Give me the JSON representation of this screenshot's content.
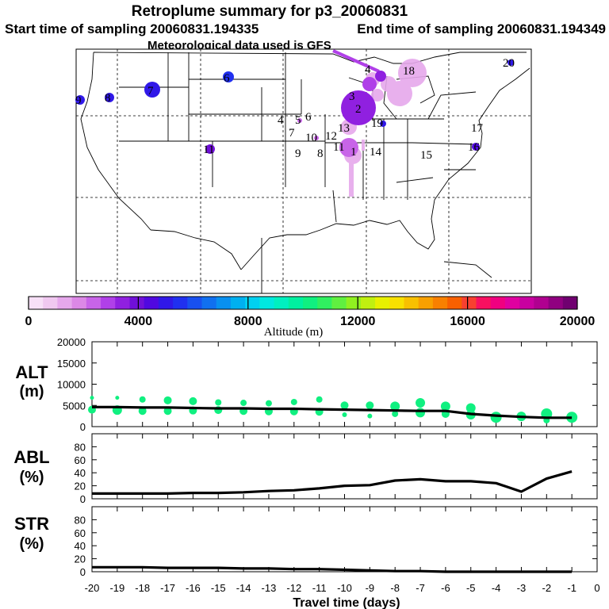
{
  "header": {
    "title": "Retroplume summary for p3_20060831",
    "start_label": "Start time of sampling 20060831.194335",
    "end_label": "End time of sampling 20060831.194349",
    "met_label": "Meteorological data used is GFS"
  },
  "colorbar": {
    "ticks": [
      "0",
      "4000",
      "8000",
      "12000",
      "16000",
      "20000"
    ],
    "tick_values": [
      0,
      4000,
      8000,
      12000,
      16000,
      20000
    ],
    "label": "Altitude (m)",
    "colors": [
      "#f7e0f7",
      "#f0c8f0",
      "#e6a8ec",
      "#dc88e6",
      "#c864e8",
      "#b040e8",
      "#9020e0",
      "#7010d8",
      "#5008e0",
      "#3018e8",
      "#2030f0",
      "#1850f0",
      "#1070f0",
      "#0890f0",
      "#00b0f0",
      "#00d0f0",
      "#00e8e0",
      "#00f0c0",
      "#00f0a0",
      "#10f080",
      "#30f060",
      "#60f040",
      "#90f020",
      "#c0f010",
      "#e8f000",
      "#f8e000",
      "#f8c000",
      "#f8a000",
      "#f88000",
      "#f86000",
      "#f84030",
      "#f81060",
      "#f00080",
      "#e000a0",
      "#c800a0",
      "#b00090",
      "#900080",
      "#700070"
    ]
  },
  "map": {
    "sites": [
      {
        "label": "1",
        "color": "#9020e0"
      },
      {
        "label": "2",
        "color": "#9020e0"
      },
      {
        "label": "3",
        "color": "#9020e0"
      },
      {
        "label": "4",
        "color": "#9020e0"
      },
      {
        "label": "4",
        "color": "#000000"
      },
      {
        "label": "5",
        "color": "#9020e0"
      },
      {
        "label": "6",
        "color": "#c864e8"
      },
      {
        "label": "6",
        "color": "#2030f0"
      },
      {
        "label": "7",
        "color": "#3018e8"
      },
      {
        "label": "7",
        "color": "#c864e8"
      },
      {
        "label": "8",
        "color": "#3018e8"
      },
      {
        "label": "8",
        "color": "#c864e8"
      },
      {
        "label": "9",
        "color": "#3018e8"
      },
      {
        "label": "9",
        "color": "#c864e8"
      },
      {
        "label": "10",
        "color": "#c864e8"
      },
      {
        "label": "11",
        "color": "#7010d8"
      },
      {
        "label": "11",
        "color": "#c864e8"
      },
      {
        "label": "12",
        "color": "#c864e8"
      },
      {
        "label": "13",
        "color": "#c864e8"
      },
      {
        "label": "14",
        "color": "#c864e8"
      },
      {
        "label": "15",
        "color": "#c864e8"
      },
      {
        "label": "16",
        "color": "#5008e0"
      },
      {
        "label": "17",
        "color": "#c864e8"
      },
      {
        "label": "18",
        "color": "#c864e8"
      },
      {
        "label": "19",
        "color": "#3018e8"
      },
      {
        "label": "20",
        "color": "#3018e8"
      }
    ]
  },
  "panels": {
    "alt": {
      "label": "ALT",
      "unit": "(m)"
    },
    "abl": {
      "label": "ABL",
      "unit": "(%)"
    },
    "str": {
      "label": "STR",
      "unit": "(%)"
    }
  },
  "chart_data": [
    {
      "type": "line",
      "name": "ALT",
      "xlabel": "Travel time (days)",
      "ylabel": "ALT (m)",
      "xlim": [
        -20,
        0
      ],
      "ylim": [
        0,
        20000
      ],
      "x_ticks": [
        -20,
        -19,
        -18,
        -17,
        -16,
        -15,
        -14,
        -13,
        -12,
        -11,
        -10,
        -9,
        -8,
        -7,
        -6,
        -5,
        -4,
        -3,
        -2,
        -1,
        0
      ],
      "x_tick_labels": [
        "-20",
        "-19",
        "-18",
        "-17",
        "-16",
        "-15",
        "-14",
        "-13",
        "-12",
        "-11",
        "-10",
        "-9",
        "-8",
        "-7",
        "-6",
        "-5",
        "-4",
        "-3",
        "-2",
        "-1",
        "0"
      ],
      "y_ticks": [
        0,
        5000,
        10000,
        15000,
        20000
      ],
      "y_tick_labels": [
        "0",
        "5000",
        "10000",
        "15000",
        "20000"
      ],
      "x": [
        -20,
        -19,
        -18,
        -17,
        -16,
        -15,
        -14,
        -13,
        -12,
        -11,
        -10,
        -9,
        -8,
        -7,
        -6,
        -5,
        -4,
        -3,
        -2,
        -1
      ],
      "values": [
        4600,
        4600,
        4500,
        4500,
        4400,
        4300,
        4300,
        4200,
        4200,
        4100,
        4000,
        3900,
        3800,
        3700,
        3700,
        3000,
        2600,
        2300,
        2100,
        2100
      ],
      "points": [
        {
          "x": -20,
          "y": 6800,
          "r": 2.5
        },
        {
          "x": -20,
          "y": 4000,
          "r": 5
        },
        {
          "x": -19,
          "y": 6800,
          "r": 2.5
        },
        {
          "x": -19,
          "y": 3900,
          "r": 6
        },
        {
          "x": -18,
          "y": 6400,
          "r": 4
        },
        {
          "x": -18,
          "y": 3700,
          "r": 5
        },
        {
          "x": -17,
          "y": 6200,
          "r": 5
        },
        {
          "x": -17,
          "y": 3700,
          "r": 5
        },
        {
          "x": -16,
          "y": 6000,
          "r": 5
        },
        {
          "x": -16,
          "y": 3800,
          "r": 5
        },
        {
          "x": -15,
          "y": 5700,
          "r": 4
        },
        {
          "x": -15,
          "y": 3900,
          "r": 5
        },
        {
          "x": -14,
          "y": 5600,
          "r": 4
        },
        {
          "x": -14,
          "y": 3700,
          "r": 5
        },
        {
          "x": -13,
          "y": 5500,
          "r": 4
        },
        {
          "x": -13,
          "y": 3600,
          "r": 5
        },
        {
          "x": -12,
          "y": 5800,
          "r": 4
        },
        {
          "x": -12,
          "y": 3600,
          "r": 5
        },
        {
          "x": -11,
          "y": 6400,
          "r": 4
        },
        {
          "x": -11,
          "y": 3500,
          "r": 5
        },
        {
          "x": -10,
          "y": 5000,
          "r": 5
        },
        {
          "x": -10,
          "y": 2800,
          "r": 3
        },
        {
          "x": -9,
          "y": 5000,
          "r": 5
        },
        {
          "x": -9,
          "y": 2500,
          "r": 3
        },
        {
          "x": -8,
          "y": 4800,
          "r": 6
        },
        {
          "x": -8,
          "y": 3000,
          "r": 4
        },
        {
          "x": -7,
          "y": 5600,
          "r": 6
        },
        {
          "x": -7,
          "y": 3300,
          "r": 6
        },
        {
          "x": -6,
          "y": 4800,
          "r": 6
        },
        {
          "x": -6,
          "y": 3000,
          "r": 5
        },
        {
          "x": -5,
          "y": 4400,
          "r": 6
        },
        {
          "x": -5,
          "y": 2800,
          "r": 6
        },
        {
          "x": -4,
          "y": 2200,
          "r": 7
        },
        {
          "x": -3,
          "y": 2400,
          "r": 6
        },
        {
          "x": -2,
          "y": 3000,
          "r": 7
        },
        {
          "x": -2,
          "y": 1500,
          "r": 4
        },
        {
          "x": -1,
          "y": 2200,
          "r": 7
        }
      ],
      "point_color": "#10f080"
    },
    {
      "type": "line",
      "name": "ABL",
      "ylabel": "ABL (%)",
      "xlim": [
        -20,
        0
      ],
      "ylim": [
        0,
        100
      ],
      "y_ticks": [
        0,
        20,
        40,
        60,
        80
      ],
      "y_tick_labels": [
        "0",
        "20",
        "40",
        "60",
        "80"
      ],
      "x": [
        -20,
        -19,
        -18,
        -17,
        -16,
        -15,
        -14,
        -13,
        -12,
        -11,
        -10,
        -9,
        -8,
        -7,
        -6,
        -5,
        -4,
        -3,
        -2,
        -1
      ],
      "values": [
        8,
        8,
        8,
        8,
        9,
        9,
        10,
        12,
        13,
        16,
        20,
        21,
        28,
        30,
        27,
        27,
        24,
        11,
        31,
        42
      ]
    },
    {
      "type": "line",
      "name": "STR",
      "ylabel": "STR (%)",
      "xlim": [
        -20,
        0
      ],
      "ylim": [
        0,
        100
      ],
      "y_ticks": [
        0,
        20,
        40,
        60,
        80
      ],
      "y_tick_labels": [
        "0",
        "20",
        "40",
        "60",
        "80"
      ],
      "x": [
        -20,
        -19,
        -18,
        -17,
        -16,
        -15,
        -14,
        -13,
        -12,
        -11,
        -10,
        -9,
        -8,
        -7,
        -6,
        -5,
        -4,
        -3,
        -2,
        -1
      ],
      "values": [
        7,
        7,
        7,
        6,
        6,
        6,
        5,
        5,
        4,
        4,
        3,
        2,
        1,
        1,
        0,
        0,
        0,
        0,
        0,
        0
      ]
    }
  ]
}
